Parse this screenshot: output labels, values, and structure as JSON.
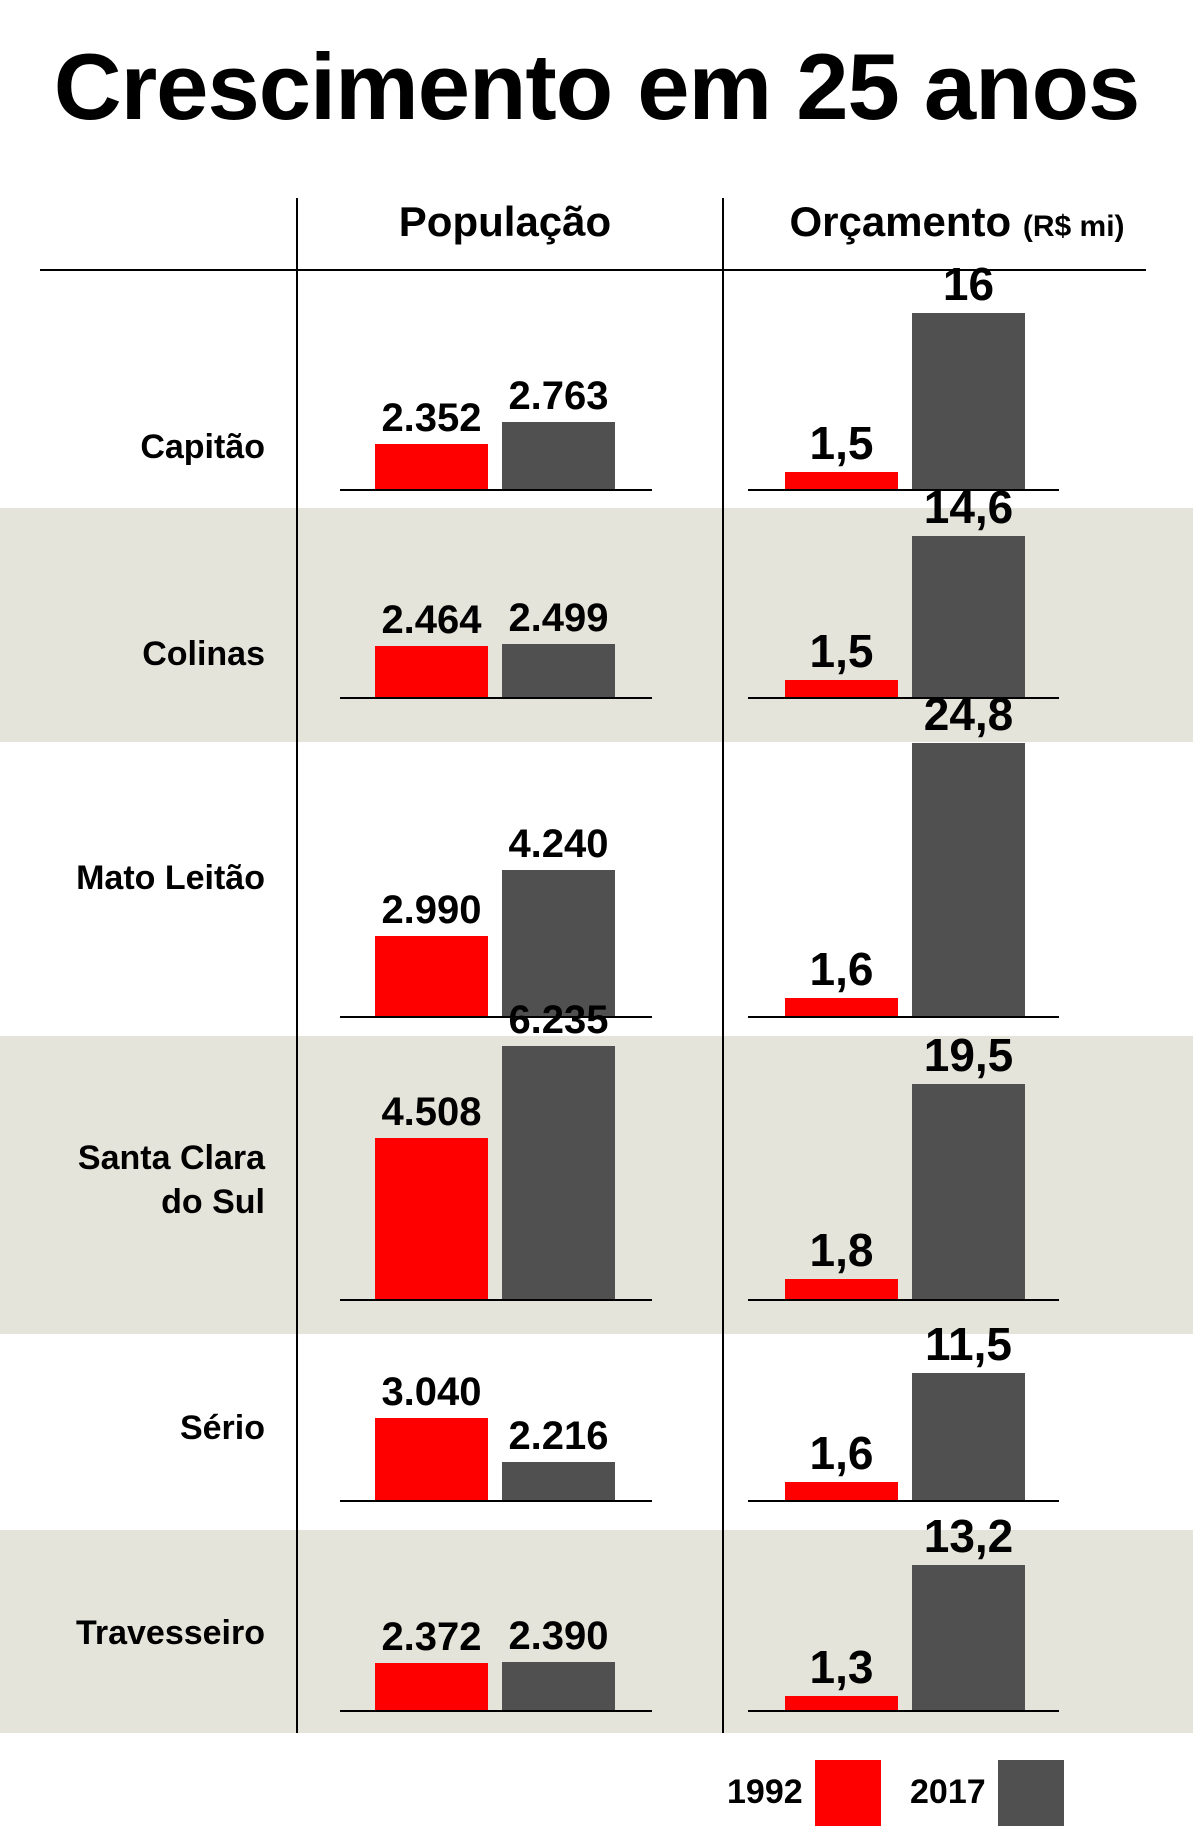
{
  "title": "Crescimento em 25 anos",
  "columns": {
    "population": "População",
    "budget": "Orçamento",
    "budget_unit": "(R$ mi)"
  },
  "legend": {
    "y1992": "1992",
    "y2017": "2017"
  },
  "colors": {
    "y1992": "#ff0000",
    "y2017": "#505050",
    "band": "#e5e4da"
  },
  "chart_data": [
    {
      "type": "bar",
      "title": "População",
      "categories": [
        "Capitão",
        "Colinas",
        "Mato Leitão",
        "Santa Clara do Sul",
        "Sério",
        "Travesseiro"
      ],
      "series": [
        {
          "name": "1992",
          "values": [
            2352,
            2464,
            2990,
            4508,
            3040,
            2372
          ],
          "labels": [
            "2.352",
            "2.464",
            "2.990",
            "4.508",
            "3.040",
            "2.372"
          ]
        },
        {
          "name": "2017",
          "values": [
            2763,
            2499,
            4240,
            6235,
            2216,
            2390
          ],
          "labels": [
            "2.763",
            "2.499",
            "4.240",
            "6.235",
            "2.216",
            "2.390"
          ]
        }
      ]
    },
    {
      "type": "bar",
      "title": "Orçamento (R$ mi)",
      "categories": [
        "Capitão",
        "Colinas",
        "Mato Leitão",
        "Santa Clara do Sul",
        "Sério",
        "Travesseiro"
      ],
      "series": [
        {
          "name": "1992",
          "values": [
            1.5,
            1.5,
            1.6,
            1.8,
            1.6,
            1.3
          ],
          "labels": [
            "1,5",
            "1,5",
            "1,6",
            "1,8",
            "1,6",
            "1,3"
          ]
        },
        {
          "name": "2017",
          "values": [
            16,
            14.6,
            24.8,
            19.5,
            11.5,
            13.2
          ],
          "labels": [
            "16",
            "14,6",
            "24,8",
            "19,5",
            "11,5",
            "13,2"
          ]
        }
      ]
    }
  ],
  "rows": [
    {
      "label": "Capitão"
    },
    {
      "label": "Colinas"
    },
    {
      "label": "Mato Leitão"
    },
    {
      "label": "Santa Clara\ndo Sul"
    },
    {
      "label": "Sério"
    },
    {
      "label": "Travesseiro"
    }
  ]
}
